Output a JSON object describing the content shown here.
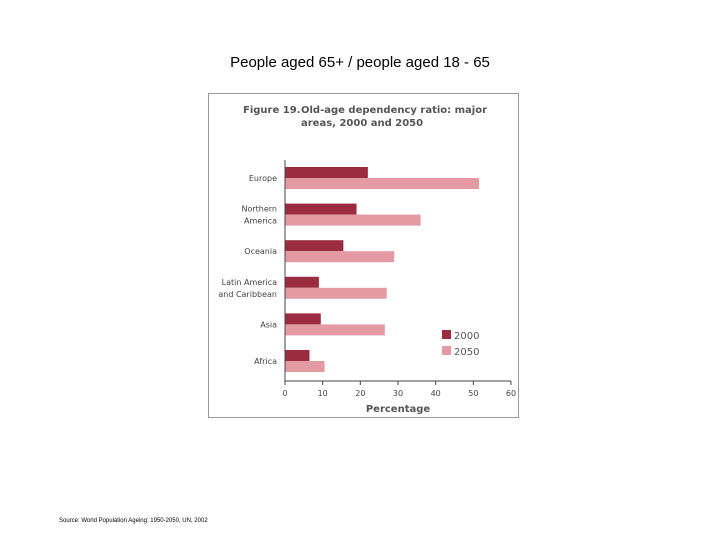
{
  "slide": {
    "title": "People aged 65+ / people aged 18 - 65",
    "source": "Source: World Population Ageing: 1950-2050, UN, 2002"
  },
  "chart_data": {
    "type": "bar",
    "orientation": "horizontal",
    "title_prefix": "Figure 19.",
    "title_line1": "Old-age dependency ratio: major",
    "title_line2": "areas, 2000 and 2050",
    "xlabel": "Percentage",
    "ylabel": "",
    "xlim": [
      0,
      60
    ],
    "xticks": [
      0,
      10,
      20,
      30,
      40,
      50,
      60
    ],
    "grid": false,
    "legend_position": "bottom-right",
    "categories": [
      [
        "Europe"
      ],
      [
        "Northern",
        "America"
      ],
      [
        "Oceania"
      ],
      [
        "Latin America",
        "and Caribbean"
      ],
      [
        "Asia"
      ],
      [
        "Africa"
      ]
    ],
    "series": [
      {
        "name": "2000",
        "color": "#9b2c3f",
        "values": [
          22,
          19,
          15.5,
          9,
          9.5,
          6.5
        ]
      },
      {
        "name": "2050",
        "color": "#e39aa3",
        "values": [
          51.5,
          36,
          29,
          27,
          26.5,
          10.5
        ]
      }
    ]
  }
}
